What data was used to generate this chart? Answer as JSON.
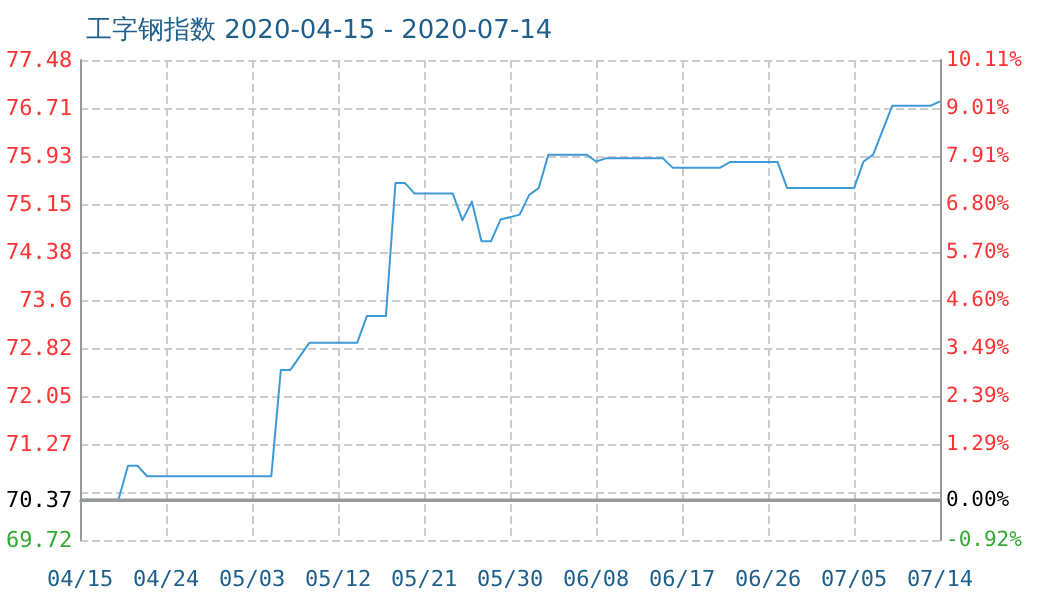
{
  "chart_data": {
    "type": "line",
    "title": "工字钢指数 2020-04-15 - 2020-07-14",
    "color": "#3e9bd6",
    "x": [
      "2020-04-15",
      "2020-04-19",
      "2020-04-20",
      "2020-04-21",
      "2020-04-22",
      "2020-05-05",
      "2020-05-06",
      "2020-05-07",
      "2020-05-09",
      "2020-05-14",
      "2020-05-15",
      "2020-05-17",
      "2020-05-18",
      "2020-05-19",
      "2020-05-20",
      "2020-05-24",
      "2020-05-25",
      "2020-05-26",
      "2020-05-27",
      "2020-05-28",
      "2020-05-29",
      "2020-05-31",
      "2020-06-01",
      "2020-06-02",
      "2020-06-03",
      "2020-06-07",
      "2020-06-08",
      "2020-06-09",
      "2020-06-15",
      "2020-06-16",
      "2020-06-21",
      "2020-06-22",
      "2020-06-27",
      "2020-06-28",
      "2020-07-05",
      "2020-07-06",
      "2020-07-07",
      "2020-07-09",
      "2020-07-13",
      "2020-07-14"
    ],
    "values": [
      70.37,
      70.37,
      70.92,
      70.92,
      70.75,
      70.75,
      72.47,
      72.47,
      72.91,
      72.91,
      73.34,
      73.34,
      75.49,
      75.49,
      75.32,
      75.32,
      74.89,
      75.19,
      74.55,
      74.55,
      74.9,
      74.98,
      75.3,
      75.41,
      75.95,
      75.95,
      75.84,
      75.89,
      75.89,
      75.74,
      75.74,
      75.83,
      75.83,
      75.41,
      75.41,
      75.84,
      75.95,
      76.74,
      76.74,
      76.81
    ],
    "xlim": [
      "2020-04-15",
      "2020-07-14"
    ],
    "xticks": [
      {
        "value": "2020-04-15",
        "label": "04/15"
      },
      {
        "value": "2020-04-24",
        "label": "04/24"
      },
      {
        "value": "2020-05-03",
        "label": "05/03"
      },
      {
        "value": "2020-05-12",
        "label": "05/12"
      },
      {
        "value": "2020-05-21",
        "label": "05/21"
      },
      {
        "value": "2020-05-30",
        "label": "05/30"
      },
      {
        "value": "2020-06-08",
        "label": "06/08"
      },
      {
        "value": "2020-06-17",
        "label": "06/17"
      },
      {
        "value": "2020-06-26",
        "label": "06/26"
      },
      {
        "value": "2020-07-05",
        "label": "07/05"
      },
      {
        "value": "2020-07-14",
        "label": "07/14"
      }
    ],
    "ylim": [
      69.72,
      77.48
    ],
    "yticks": [
      69.72,
      70.37,
      {
        "value": 70.495,
        "label": null
      },
      71.27,
      72.05,
      72.82,
      73.6,
      74.38,
      75.15,
      75.93,
      76.71,
      77.48
    ],
    "y2lim": [
      -0.92,
      10.11
    ],
    "y2ticks": [
      {
        "value": -0.92,
        "label": "-0.92%"
      },
      {
        "value": 0,
        "label": "0.00%"
      },
      {
        "value": 1.29,
        "label": "1.29%"
      },
      {
        "value": 2.39,
        "label": "2.39%"
      },
      {
        "value": 3.49,
        "label": "3.49%"
      },
      {
        "value": 4.6,
        "label": "4.60%"
      },
      {
        "value": 5.7,
        "label": "5.70%"
      },
      {
        "value": 6.8,
        "label": "6.80%"
      },
      {
        "value": 7.91,
        "label": "7.91%"
      },
      {
        "value": 9.01,
        "label": "9.01%"
      },
      {
        "value": 10.11,
        "label": "10.11%"
      }
    ],
    "ref_lines": [
      {
        "axis": "y",
        "value": 70.37,
        "color": "#999999",
        "line_style": "solid"
      }
    ],
    "grid": true,
    "marker": "none",
    "line_style": "solid"
  }
}
